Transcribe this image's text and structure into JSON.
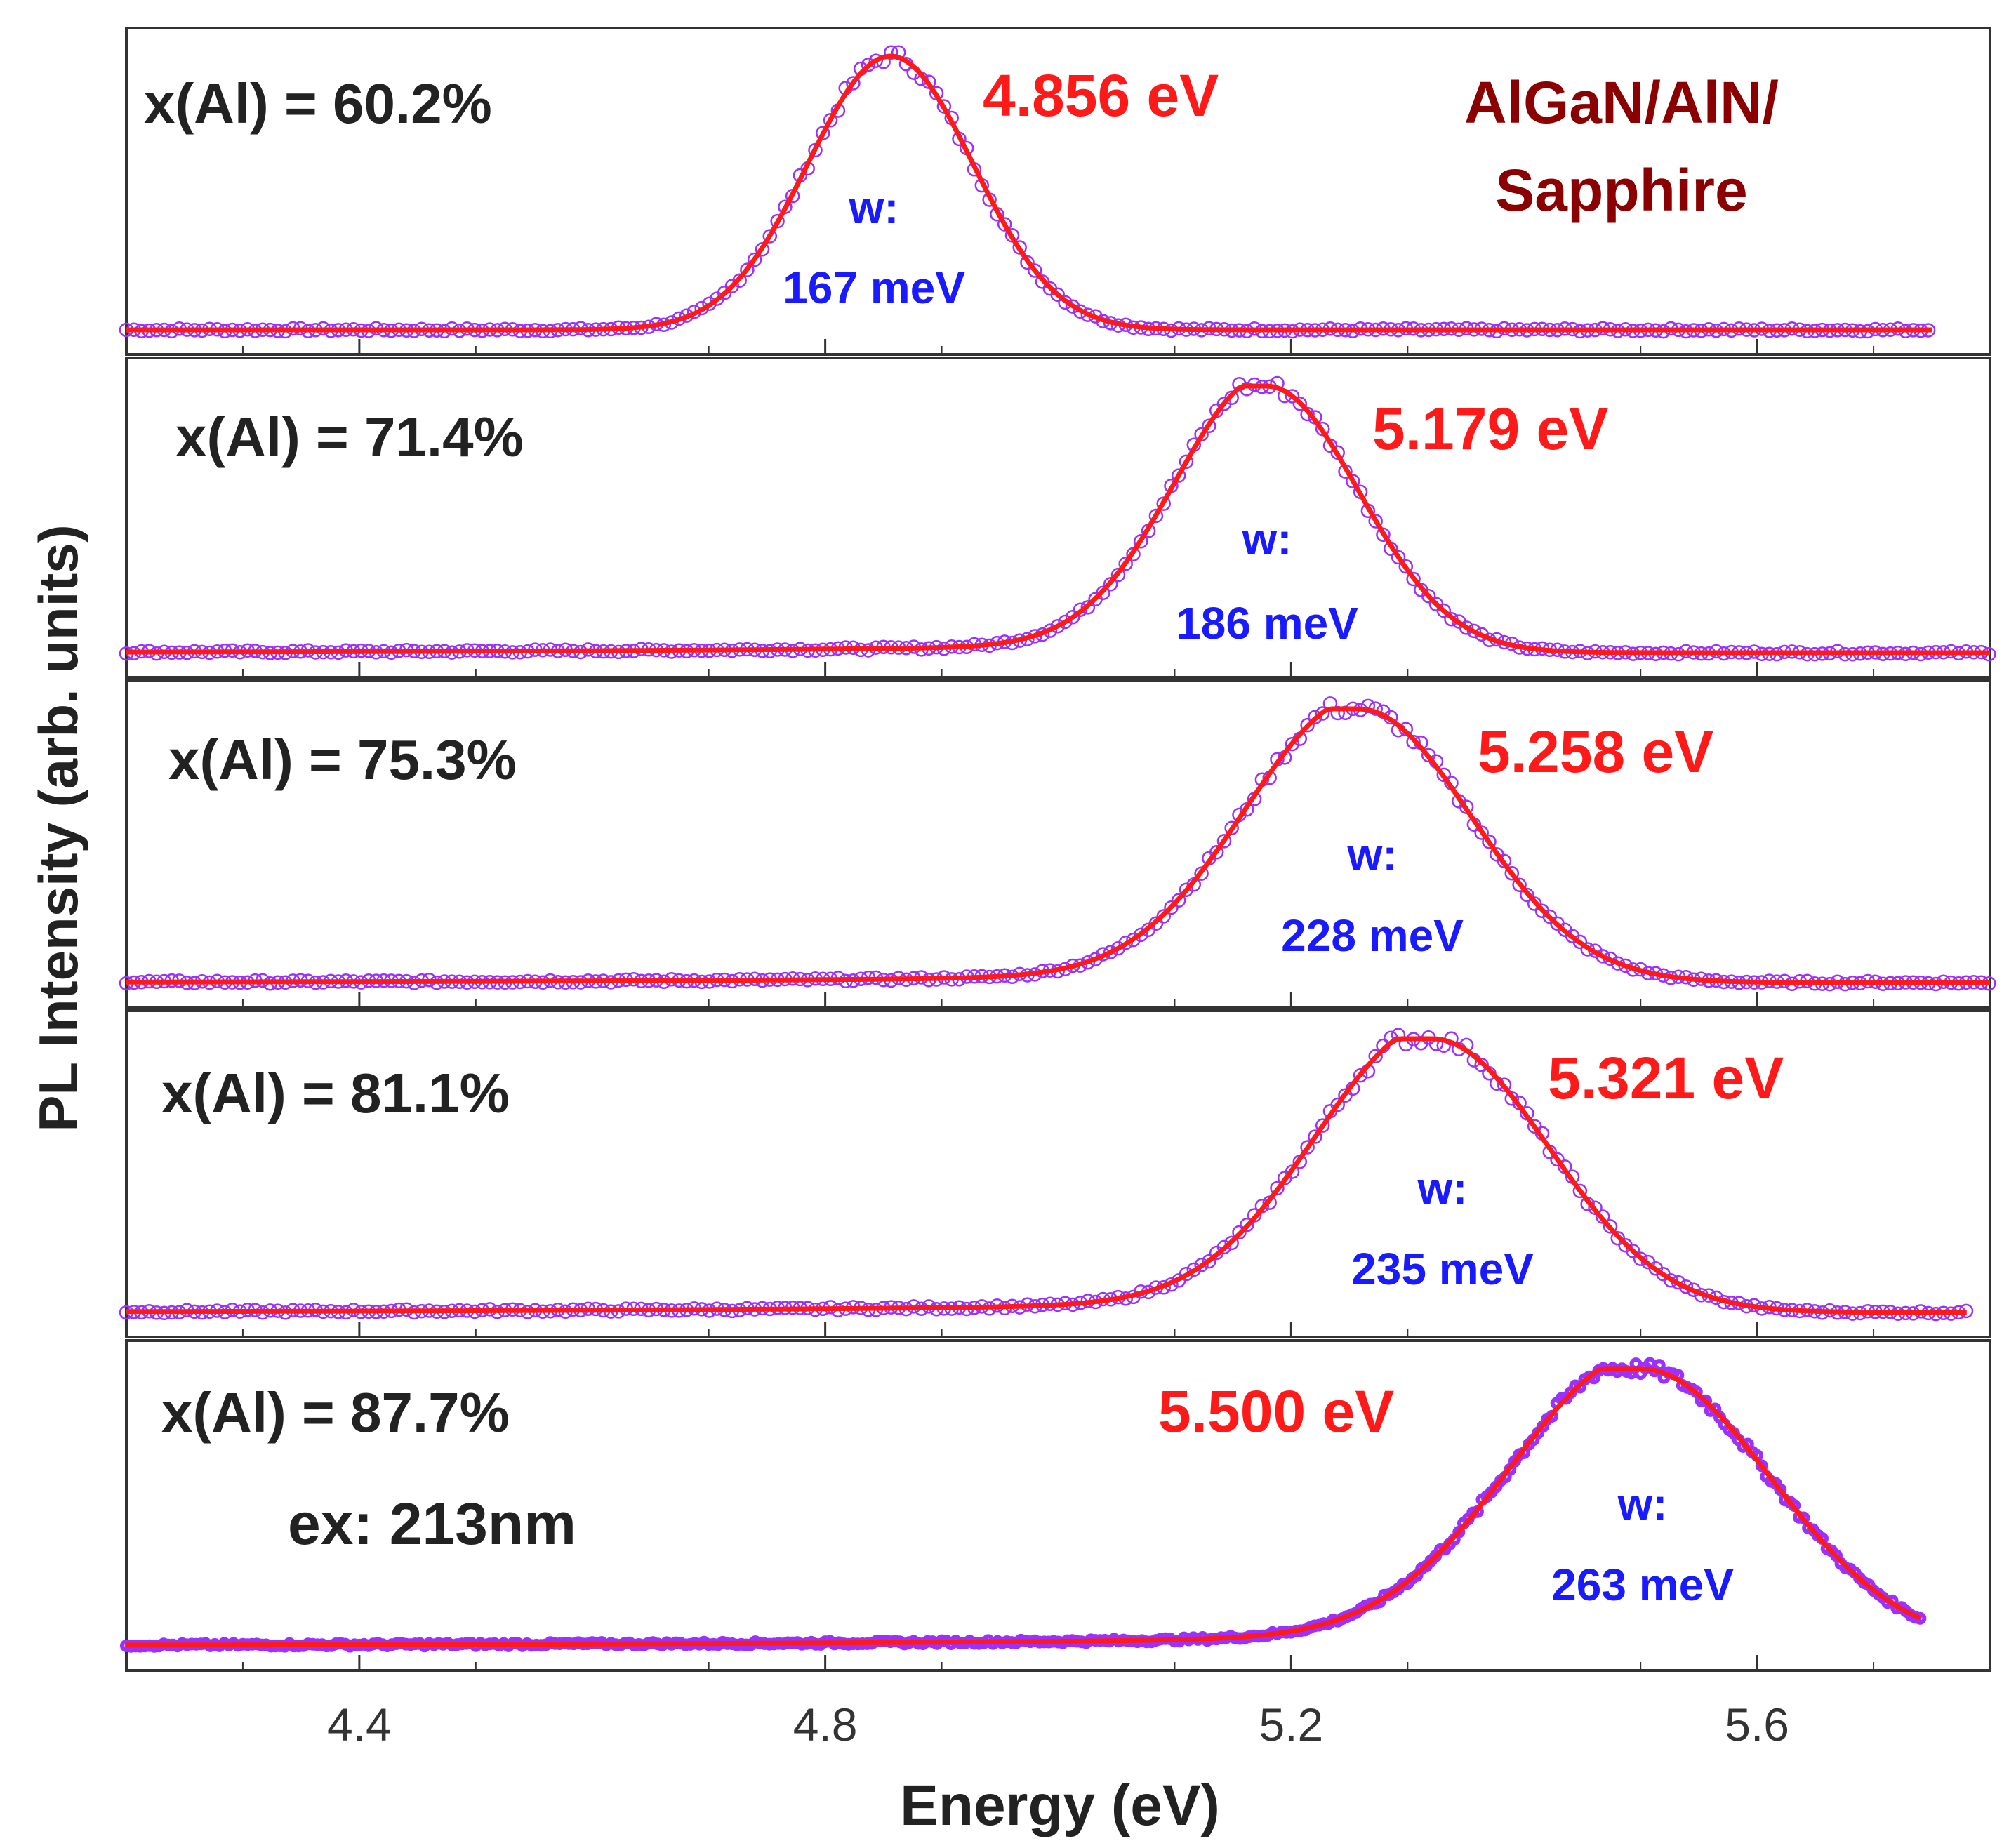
{
  "chart_data": {
    "type": "line",
    "title": "",
    "sample_label": [
      "AlGaN/AlN/",
      "Sapphire"
    ],
    "xlabel": "Energy (eV)",
    "ylabel": "PL Intensity (arb. units)",
    "xlim": [
      4.2,
      5.8
    ],
    "xticks": [
      4.4,
      4.8,
      5.2,
      5.6
    ],
    "x_tick_labels": [
      "4.4",
      "4.8",
      "5.2",
      "5.6"
    ],
    "excitation_label": "ex: 213nm",
    "colors": {
      "fit": "#ff1a1a",
      "data": "#9b30ff",
      "peak_text": "#ff1a1a",
      "width_text": "#1a1aff",
      "sample_text": "#8b0000",
      "axis": "#333333"
    },
    "series": [
      {
        "name": "x(Al) = 60.2%",
        "peak_label": "4.856 eV",
        "width_label": "w:",
        "width_value": "167 meV",
        "peak_ev": 4.856,
        "fwhm_mev": 167,
        "baseline": 0.02,
        "x_end": 5.75,
        "tail_amp": 0.0,
        "tail_w": 0.2
      },
      {
        "name": "x(Al) = 71.4%",
        "peak_label": "5.179 eV",
        "width_label": "w:",
        "width_value": "186 meV",
        "peak_ev": 5.179,
        "fwhm_mev": 186,
        "baseline": 0.02,
        "x_end": 5.8,
        "tail_amp": 0.04,
        "tail_w": 0.35
      },
      {
        "name": "x(Al) = 75.3%",
        "peak_label": "5.258 eV",
        "width_label": "w:",
        "width_value": "228 meV",
        "peak_ev": 5.258,
        "fwhm_mev": 228,
        "baseline": 0.02,
        "x_end": 5.8,
        "tail_amp": 0.04,
        "tail_w": 0.35
      },
      {
        "name": "x(Al) = 81.1%",
        "peak_label": "5.321 eV",
        "width_label": "w:",
        "width_value": "235 meV",
        "peak_ev": 5.321,
        "fwhm_mev": 235,
        "baseline": 0.02,
        "x_end": 5.78,
        "tail_amp": 0.05,
        "tail_w": 0.4
      },
      {
        "name": "x(Al) = 87.7%",
        "peak_label": "5.500 eV",
        "width_label": "w:",
        "width_value": "263 meV",
        "peak_ev": 5.5,
        "fwhm_mev": 263,
        "baseline": 0.02,
        "x_end": 5.74,
        "tail_amp": 0.05,
        "tail_w": 0.45
      }
    ]
  }
}
